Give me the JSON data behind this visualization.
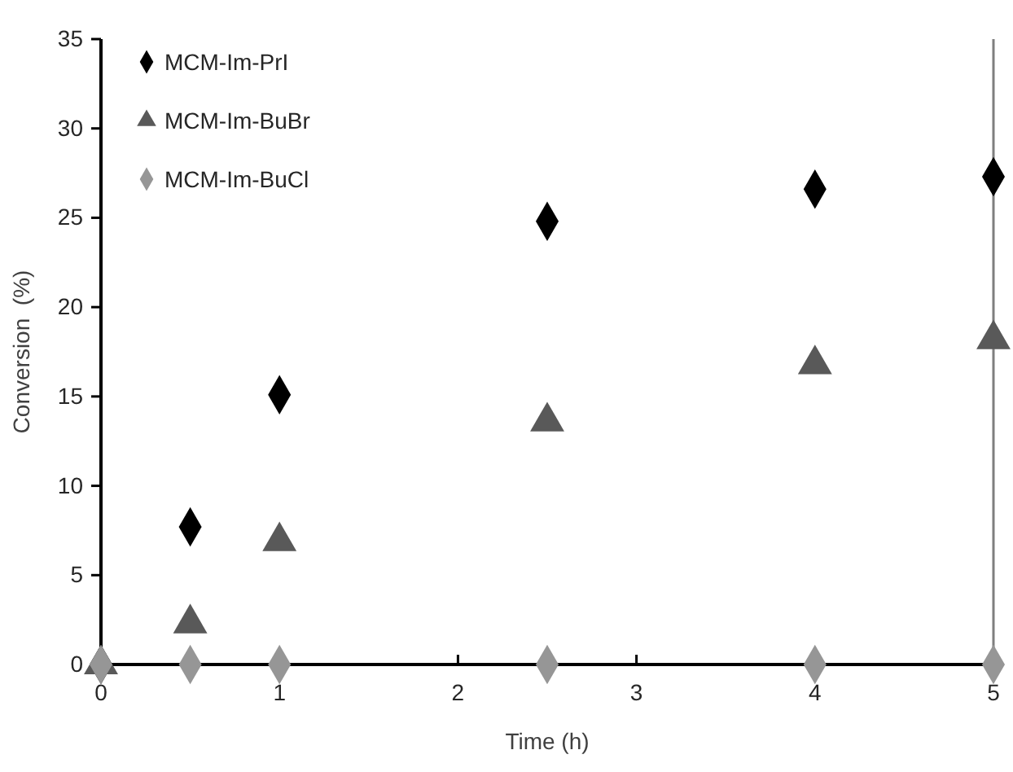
{
  "chart_data": {
    "type": "scatter",
    "xlabel": "Time (h)",
    "ylabel": "Conversion  (%)",
    "x": [
      0,
      0.5,
      1,
      2.5,
      4,
      5
    ],
    "xlim": [
      0,
      5
    ],
    "xticks": [
      0,
      1,
      2,
      3,
      4,
      5
    ],
    "ylim": [
      0,
      35
    ],
    "yticks": [
      0,
      5,
      10,
      15,
      20,
      25,
      30,
      35
    ],
    "grid": false,
    "legend": "top left",
    "series": [
      {
        "name": "MCM-Im-PrI",
        "color": "#000000",
        "marker": "diamond",
        "values": [
          0,
          7.7,
          15.1,
          24.8,
          26.6,
          27.3
        ]
      },
      {
        "name": "MCM-Im-BuBr",
        "color": "#595959",
        "marker": "triangle",
        "values": [
          0,
          2.3,
          6.9,
          13.6,
          16.8,
          18.2
        ]
      },
      {
        "name": "MCM-Im-BuCl",
        "color": "#969696",
        "marker": "diamond",
        "values": [
          0,
          0,
          0,
          0,
          0,
          0
        ]
      }
    ]
  }
}
